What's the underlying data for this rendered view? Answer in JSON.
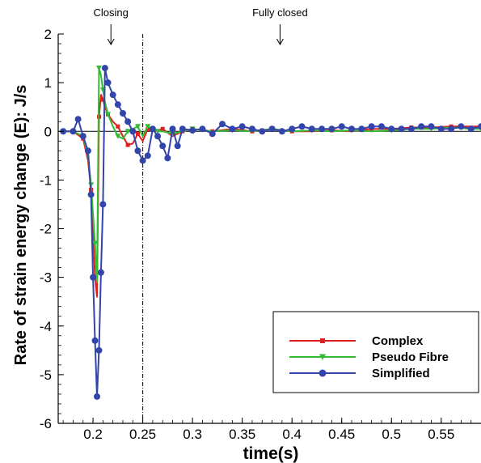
{
  "chart_data": {
    "type": "line",
    "xlabel": "time(s)",
    "ylabel": "Rate of strain energy change (E): J/s",
    "xlim": [
      0.165,
      0.59
    ],
    "ylim": [
      -6,
      2
    ],
    "xticks": [
      0.2,
      0.25,
      0.3,
      0.35,
      0.4,
      0.45,
      0.5,
      0.55
    ],
    "xtick_labels": [
      "0.2",
      "0.25",
      "0.3",
      "0.35",
      "0.4",
      "0.45",
      "0.5",
      "0.55"
    ],
    "yticks": [
      -6,
      -5,
      -4,
      -3,
      -2,
      -1,
      0,
      1,
      2
    ],
    "ytick_labels": [
      "-6",
      "-5",
      "-4",
      "-3",
      "-2",
      "-1",
      "0",
      "1",
      "2"
    ],
    "vline_x": 0.25,
    "zero_line": true,
    "grid": false,
    "legend_position": "bottom-right",
    "annotations": [
      {
        "text": "Closing",
        "x": 0.218
      },
      {
        "text": "Fully closed",
        "x": 0.388
      }
    ],
    "series": [
      {
        "name": "Complex",
        "color": "#e02020",
        "marker": "square",
        "x": [
          0.17,
          0.18,
          0.19,
          0.195,
          0.198,
          0.2,
          0.202,
          0.204,
          0.206,
          0.208,
          0.21,
          0.212,
          0.215,
          0.22,
          0.225,
          0.23,
          0.235,
          0.24,
          0.245,
          0.25,
          0.255,
          0.26,
          0.27,
          0.28,
          0.29,
          0.3,
          0.32,
          0.34,
          0.36,
          0.38,
          0.4,
          0.42,
          0.44,
          0.46,
          0.48,
          0.5,
          0.52,
          0.54,
          0.56,
          0.58,
          0.59
        ],
        "y": [
          0.0,
          0.0,
          -0.15,
          -0.6,
          -1.2,
          -2.1,
          -3.0,
          -3.4,
          0.3,
          0.75,
          0.65,
          0.5,
          0.35,
          0.2,
          0.1,
          -0.1,
          -0.28,
          -0.25,
          -0.05,
          -0.2,
          0.05,
          0.0,
          0.05,
          -0.1,
          0.0,
          0.05,
          0.0,
          0.05,
          0.0,
          0.05,
          0.0,
          0.0,
          0.02,
          0.0,
          0.05,
          0.05,
          0.08,
          0.08,
          0.1,
          0.1,
          0.1
        ]
      },
      {
        "name": "Pseudo Fibre",
        "color": "#33bb33",
        "marker": "triangle-down",
        "x": [
          0.17,
          0.18,
          0.19,
          0.195,
          0.198,
          0.2,
          0.202,
          0.204,
          0.206,
          0.208,
          0.21,
          0.212,
          0.215,
          0.22,
          0.225,
          0.23,
          0.235,
          0.24,
          0.245,
          0.25,
          0.255,
          0.26,
          0.265,
          0.27,
          0.28,
          0.29,
          0.3,
          0.32,
          0.34,
          0.36,
          0.38,
          0.4,
          0.42,
          0.44,
          0.46,
          0.48,
          0.5,
          0.52,
          0.54,
          0.56,
          0.58,
          0.59
        ],
        "y": [
          0.0,
          0.0,
          -0.1,
          -0.5,
          -1.1,
          -1.7,
          -2.3,
          -3.1,
          1.3,
          1.15,
          0.85,
          0.6,
          0.35,
          0.1,
          -0.1,
          -0.15,
          0.0,
          0.05,
          0.1,
          -0.1,
          0.1,
          0.05,
          0.0,
          0.0,
          -0.05,
          0.0,
          0.05,
          0.0,
          0.02,
          0.0,
          0.05,
          0.0,
          0.02,
          0.0,
          0.02,
          0.0,
          0.02,
          0.05,
          0.05,
          0.08,
          0.05,
          0.05
        ]
      },
      {
        "name": "Simplified",
        "color": "#3344aa",
        "marker": "circle",
        "x": [
          0.17,
          0.18,
          0.185,
          0.19,
          0.195,
          0.198,
          0.2,
          0.202,
          0.204,
          0.206,
          0.208,
          0.21,
          0.212,
          0.215,
          0.22,
          0.225,
          0.23,
          0.235,
          0.24,
          0.245,
          0.25,
          0.255,
          0.26,
          0.265,
          0.27,
          0.275,
          0.28,
          0.285,
          0.29,
          0.3,
          0.31,
          0.32,
          0.33,
          0.34,
          0.35,
          0.36,
          0.37,
          0.38,
          0.39,
          0.4,
          0.41,
          0.42,
          0.43,
          0.44,
          0.45,
          0.46,
          0.47,
          0.48,
          0.49,
          0.5,
          0.51,
          0.52,
          0.53,
          0.54,
          0.55,
          0.56,
          0.57,
          0.58,
          0.59
        ],
        "y": [
          0.0,
          0.0,
          0.25,
          -0.1,
          -0.4,
          -1.3,
          -3.0,
          -4.3,
          -5.45,
          -4.5,
          -2.9,
          -1.5,
          1.3,
          1.0,
          0.75,
          0.55,
          0.37,
          0.2,
          0.0,
          -0.4,
          -0.6,
          -0.5,
          0.05,
          -0.1,
          -0.3,
          -0.55,
          0.05,
          -0.3,
          0.05,
          0.02,
          0.05,
          -0.05,
          0.15,
          0.05,
          0.1,
          0.05,
          0.0,
          0.05,
          0.0,
          0.05,
          0.1,
          0.05,
          0.05,
          0.05,
          0.1,
          0.05,
          0.05,
          0.1,
          0.1,
          0.05,
          0.05,
          0.05,
          0.1,
          0.1,
          0.05,
          0.05,
          0.1,
          0.05,
          0.1
        ]
      }
    ]
  }
}
